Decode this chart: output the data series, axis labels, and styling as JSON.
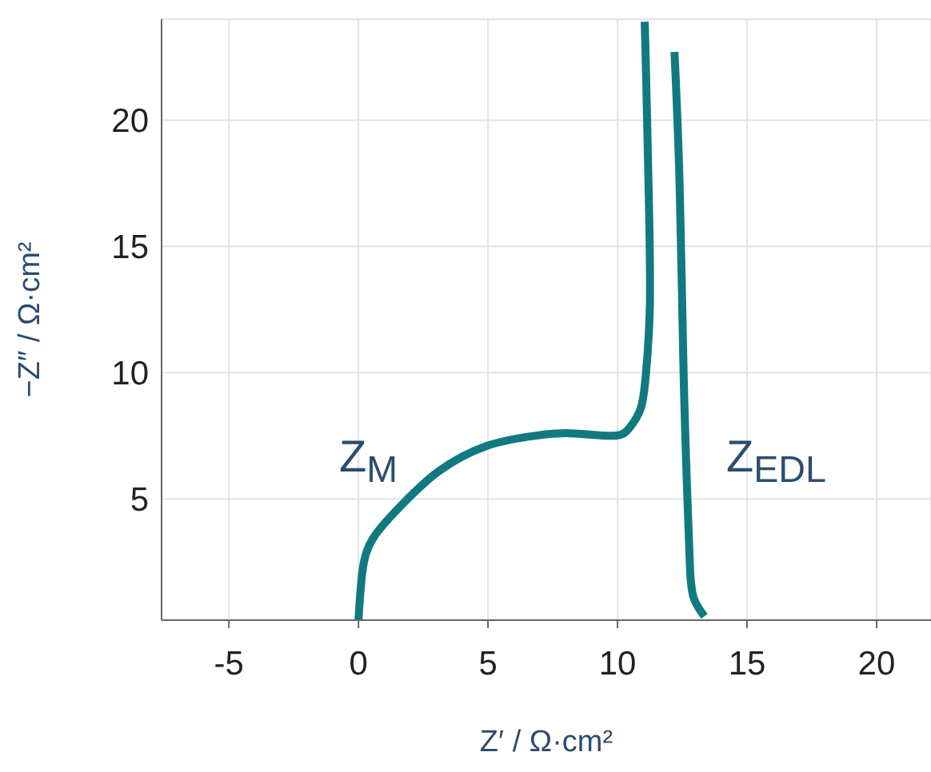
{
  "chart_data": {
    "type": "line",
    "xlabel": "Z′ / Ω·cm²",
    "ylabel": "−Z″ / Ω·cm²",
    "xlim": [
      -7.6,
      22.1
    ],
    "xticks": [
      -5,
      0,
      5,
      10,
      15,
      20
    ],
    "ylim": [
      0.2,
      24
    ],
    "yticks": [
      5,
      10,
      15,
      20
    ],
    "grid": true,
    "marker": "none",
    "line_style": "solid",
    "series": [
      {
        "color": "#117a80",
        "x": [
          0,
          0.15,
          0.6,
          1.8,
          3.1,
          4.95,
          6.8,
          8.2,
          9.8,
          10.45,
          10.9,
          11.1,
          11.25,
          11.2,
          11.1,
          11.05
        ],
        "values": [
          0.2,
          2.1,
          3.5,
          4.9,
          6.1,
          7.1,
          7.5,
          7.6,
          7.5,
          7.8,
          8.6,
          10,
          12.75,
          17.3,
          21.9,
          23.9
        ]
      },
      {
        "color": "#117a80",
        "x": [
          12.2,
          12.4,
          12.55,
          12.7,
          12.8,
          12.95,
          13.35
        ],
        "values": [
          22.7,
          17.3,
          10,
          4.95,
          2.2,
          1.05,
          0.35
        ]
      }
    ],
    "annotations": [
      "Z$_{M}$",
      "Z$_{EDL}$"
    ]
  }
}
